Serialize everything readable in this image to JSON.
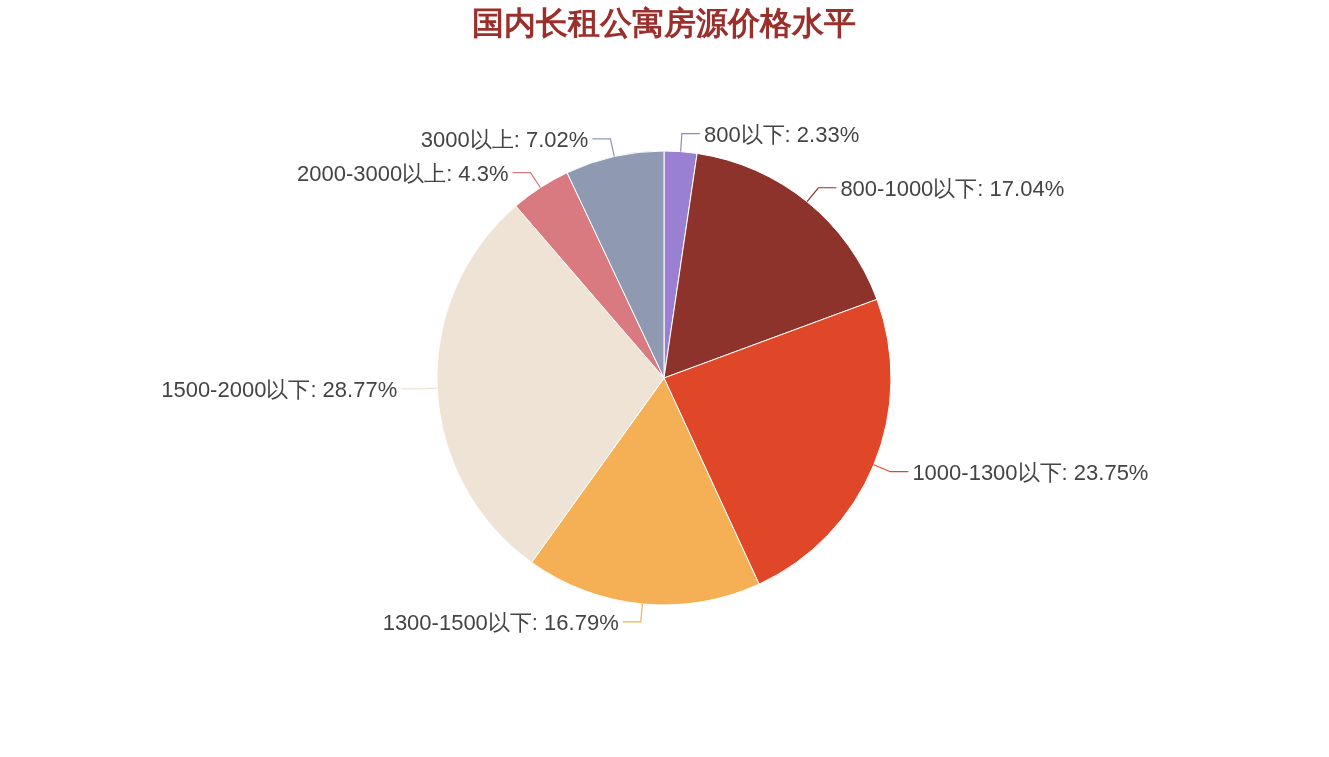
{
  "chart_data": {
    "type": "pie",
    "title": "国内长租公寓房源价格水平",
    "categories": [
      "800以下",
      "800-1000以下",
      "1000-1300以下",
      "1300-1500以下",
      "1500-2000以下",
      "2000-3000以上",
      "3000以上"
    ],
    "values": [
      2.33,
      17.04,
      23.75,
      16.79,
      28.77,
      4.3,
      7.02
    ],
    "value_labels": [
      "2.33%",
      "17.04%",
      "23.75%",
      "16.79%",
      "28.77%",
      "4.3%",
      "7.02%"
    ],
    "colors": [
      "#9a80d2",
      "#8e322c",
      "#e04628",
      "#f5b056",
      "#efe3d5",
      "#d97a80",
      "#8f99b1"
    ]
  }
}
